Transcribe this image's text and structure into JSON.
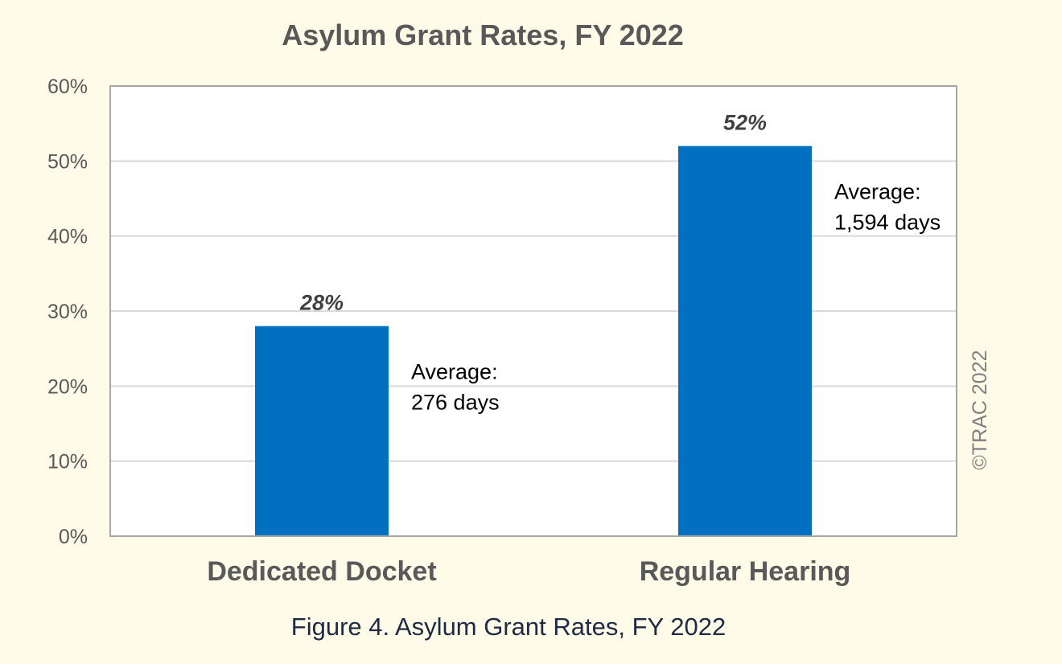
{
  "chart_data": {
    "type": "bar",
    "title": "Asylum Grant Rates, FY 2022",
    "categories": [
      "Dedicated Docket",
      "Regular Hearing"
    ],
    "values": [
      28,
      52
    ],
    "value_labels": [
      "28%",
      "52%"
    ],
    "annotations": [
      [
        "Average:",
        "276 days"
      ],
      [
        "Average:",
        "1,594 days"
      ]
    ],
    "ylim": [
      0,
      60
    ],
    "yticks": [
      0,
      10,
      20,
      30,
      40,
      50,
      60
    ],
    "ytick_labels": [
      "0%",
      "10%",
      "20%",
      "30%",
      "40%",
      "50%",
      "60%"
    ],
    "xlabel": "",
    "ylabel": "",
    "grid": true,
    "legend": "none",
    "bar_color": "#0070c0",
    "gridline_color": "#d9d9d9",
    "frame_color": "#a6a6a6",
    "credit": "©TRAC 2022"
  },
  "caption": "Figure 4. Asylum Grant Rates, FY 2022",
  "colors": {
    "page_background": "#fefbe8",
    "plot_background": "#ffffff"
  }
}
